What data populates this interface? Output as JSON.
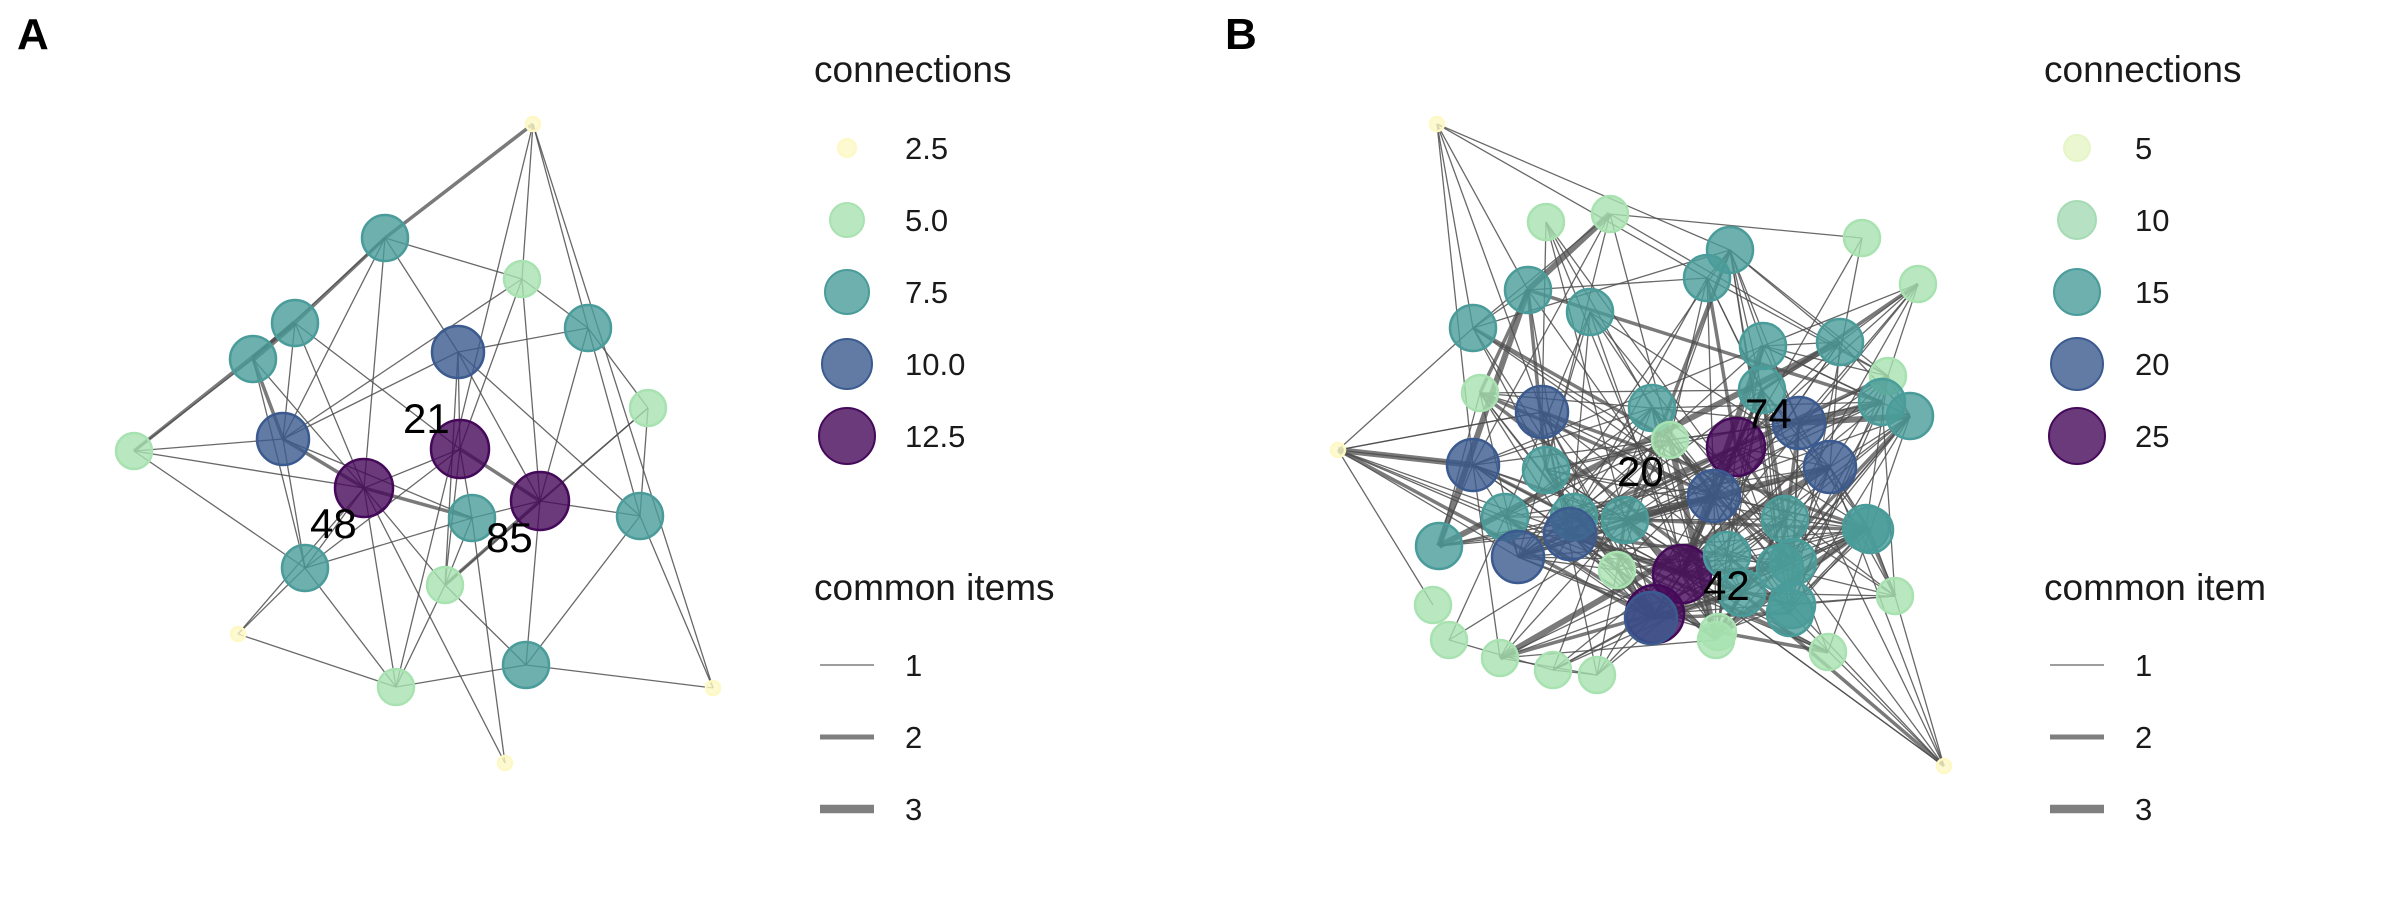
{
  "panels": [
    {
      "id": "A",
      "label": "A",
      "legend_size_title": "connections",
      "legend_size_items": [
        {
          "text": "2.5",
          "value": 2.5,
          "color": "#fdf8c4"
        },
        {
          "text": "5.0",
          "value": 5.0,
          "color": "#a7e2b0"
        },
        {
          "text": "7.5",
          "value": 7.5,
          "color": "#4a9c9a"
        },
        {
          "text": "10.0",
          "value": 10.0,
          "color": "#3b5a8f"
        },
        {
          "text": "12.5",
          "value": 12.5,
          "color": "#45095a"
        }
      ],
      "legend_edge_title": "common items",
      "legend_edge_items": [
        {
          "text": "1",
          "value": 1
        },
        {
          "text": "2",
          "value": 2
        },
        {
          "text": "3",
          "value": 3
        }
      ],
      "labeled_nodes": [
        "21",
        "48",
        "85"
      ]
    },
    {
      "id": "B",
      "label": "B",
      "legend_size_title": "connections",
      "legend_size_items": [
        {
          "text": "5",
          "value": 5,
          "color": "#e6f5c6"
        },
        {
          "text": "10",
          "value": 10,
          "color": "#a4dbb4"
        },
        {
          "text": "15",
          "value": 15,
          "color": "#4a9c9a"
        },
        {
          "text": "20",
          "value": 20,
          "color": "#3b5a8f"
        },
        {
          "text": "25",
          "value": 25,
          "color": "#45095a"
        }
      ],
      "legend_edge_title": "common item",
      "legend_edge_items": [
        {
          "text": "1",
          "value": 1
        },
        {
          "text": "2",
          "value": 2
        },
        {
          "text": "3",
          "value": 3
        }
      ],
      "labeled_nodes": [
        "74",
        "20",
        "42"
      ]
    }
  ],
  "colors": {
    "edge": "#4d4d4d",
    "legend_edge": "#7f7f7f"
  }
}
